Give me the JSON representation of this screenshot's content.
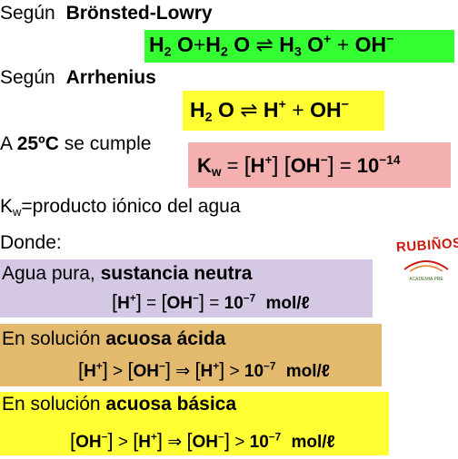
{
  "colors": {
    "bronsted_box": "#33ff33",
    "arrhenius_box": "#ffff33",
    "kw_box": "#f4b0ae",
    "neutral_box": "#d4c8e4",
    "acid_box": "#e2b96d",
    "basic_box": "#ffff33",
    "logo_text": "#cc1a10"
  },
  "bronsted": {
    "intro": "Según",
    "name": "Brönsted-Lowry",
    "eq": {
      "h2": "H",
      "s2a": "2",
      "o1": "O",
      "plus1": "+",
      "h2b": "H",
      "s2b": "2",
      "o2": "O",
      "arrows": "⇌",
      "h3": "H",
      "s3": "3",
      "o3": "O",
      "sup_plus": "+",
      "plus2": "+",
      "oh": "OH",
      "sup_minus": "−"
    }
  },
  "arrhenius": {
    "intro": "Según",
    "name": "Arrhenius",
    "eq": {
      "h": "H",
      "s2": "2",
      "o": "O",
      "arrows": "⇌",
      "hplus": "H",
      "sup_plus": "+",
      "plus": "+",
      "oh": "OH",
      "sup_minus": "−"
    }
  },
  "temp_line": {
    "pre": "A",
    "temp": "25ºC",
    "post": "se cumple"
  },
  "kw_eq": {
    "k": "K",
    "w": "w",
    "eq": "=",
    "lb1": "[",
    "h": "H",
    "sup_plus": "+",
    "rb1": "]",
    "lb2": "[",
    "oh": "OH",
    "sup_minus": "−",
    "rb2": "]",
    "eq2": "=",
    "base": "10",
    "exp": "−14"
  },
  "kw_def": {
    "k": "K",
    "w": "w",
    "text": "=producto iónico del agua"
  },
  "donde": "Donde:",
  "neutral": {
    "pre": "Agua pura,",
    "bold": "sustancia neutra",
    "eq": {
      "lb1": "[",
      "h": "H",
      "sup_plus": "+",
      "rb1": "]",
      "eq1": "=",
      "lb2": "[",
      "oh": "OH",
      "sup_minus": "−",
      "rb2": "]",
      "eq2": "=",
      "base": "10",
      "exp": "−7",
      "unit": "mol/ℓ"
    }
  },
  "acid": {
    "pre": "En solución",
    "bold": "acuosa ácida",
    "eq": {
      "lb1": "[",
      "h": "H",
      "sup_plus": "+",
      "rb1": "]",
      "gt1": ">",
      "lb2": "[",
      "oh": "OH",
      "sup_minus": "−",
      "rb2": "]",
      "implies": "⇒",
      "lb3": "[",
      "h2": "H",
      "sup_plus2": "+",
      "rb3": "]",
      "gt2": ">",
      "base": "10",
      "exp": "−7",
      "unit": "mol/ℓ"
    }
  },
  "basic": {
    "pre": "En solución",
    "bold": "acuosa básica",
    "eq": {
      "lb1": "[",
      "oh": "OH",
      "sup_minus": "−",
      "rb1": "]",
      "gt1": ">",
      "lb2": "[",
      "h": "H",
      "sup_plus": "+",
      "rb2": "]",
      "implies": "⇒",
      "lb3": "[",
      "oh2": "OH",
      "sup_minus2": "−",
      "rb3": "]",
      "gt2": ">",
      "base": "10",
      "exp": "−7",
      "unit": "mol/ℓ"
    }
  },
  "logo": {
    "word": "RUBIÑOS",
    "tagline": "ACADEMIA PRE"
  }
}
